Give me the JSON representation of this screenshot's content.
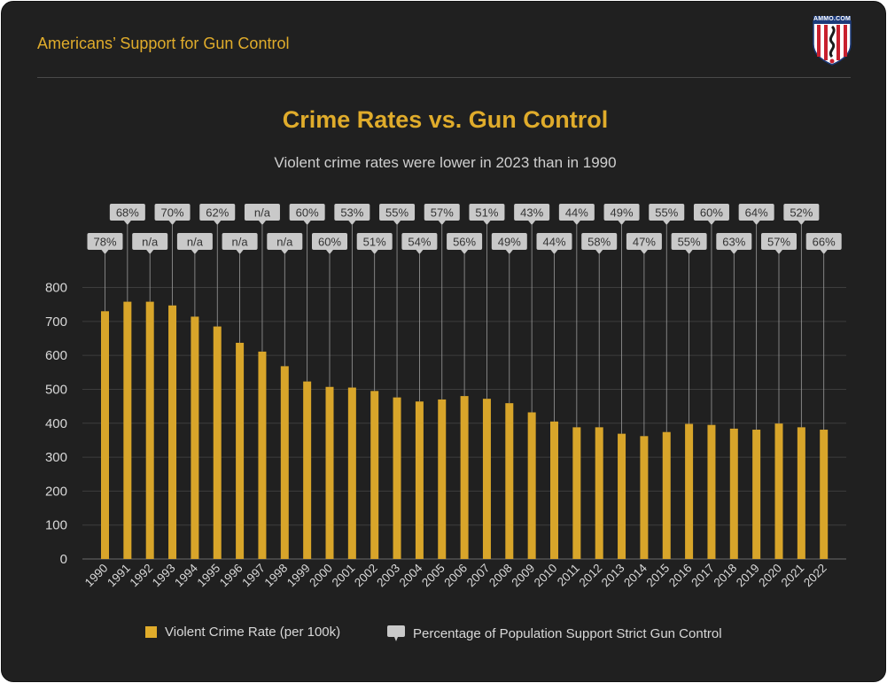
{
  "header": {
    "title": "Americans’ Support for Gun Control"
  },
  "logo": {
    "text": "AMMO.COM"
  },
  "colors": {
    "accent": "#e0ac2b",
    "bar": "#d8a52a",
    "callout_bg": "#c9c9c9",
    "callout_text": "#333333",
    "grid": "#3d3d3d",
    "background": "#202020"
  },
  "chart_data": {
    "type": "bar",
    "title": "Crime Rates vs. Gun Control",
    "subtitle": "Violent crime rates were lower in 2023 than in 1990",
    "xlabel": "",
    "ylabel": "",
    "ylim": [
      0,
      800
    ],
    "yticks": [
      "0",
      "100",
      "200",
      "300",
      "400",
      "500",
      "600",
      "700",
      "800"
    ],
    "categories": [
      "1990",
      "1991",
      "1992",
      "1993",
      "1994",
      "1995",
      "1996",
      "1997",
      "1998",
      "1999",
      "2000",
      "2001",
      "2002",
      "2003",
      "2004",
      "2005",
      "2006",
      "2007",
      "2008",
      "2009",
      "2010",
      "2011",
      "2012",
      "2013",
      "2014",
      "2015",
      "2016",
      "2017",
      "2018",
      "2019",
      "2020",
      "2021",
      "2022"
    ],
    "series": [
      {
        "name": "Violent Crime Rate (per 100k)",
        "values": [
          730,
          758,
          758,
          747,
          714,
          685,
          637,
          611,
          568,
          523,
          507,
          505,
          495,
          476,
          464,
          470,
          480,
          472,
          459,
          432,
          405,
          388,
          388,
          369,
          362,
          374,
          398,
          395,
          384,
          381,
          399,
          388,
          381
        ]
      },
      {
        "name": "Percentage of Population Support Strict Gun Control",
        "labels": [
          "78%",
          "68%",
          "n/a",
          "70%",
          "n/a",
          "62%",
          "n/a",
          "n/a",
          "n/a",
          "60%",
          "60%",
          "53%",
          "51%",
          "55%",
          "54%",
          "57%",
          "56%",
          "51%",
          "49%",
          "43%",
          "44%",
          "44%",
          "58%",
          "49%",
          "47%",
          "55%",
          "55%",
          "60%",
          "63%",
          "64%",
          "57%",
          "52%",
          "66%"
        ]
      }
    ],
    "grid": true,
    "legend_position": "bottom-center"
  }
}
